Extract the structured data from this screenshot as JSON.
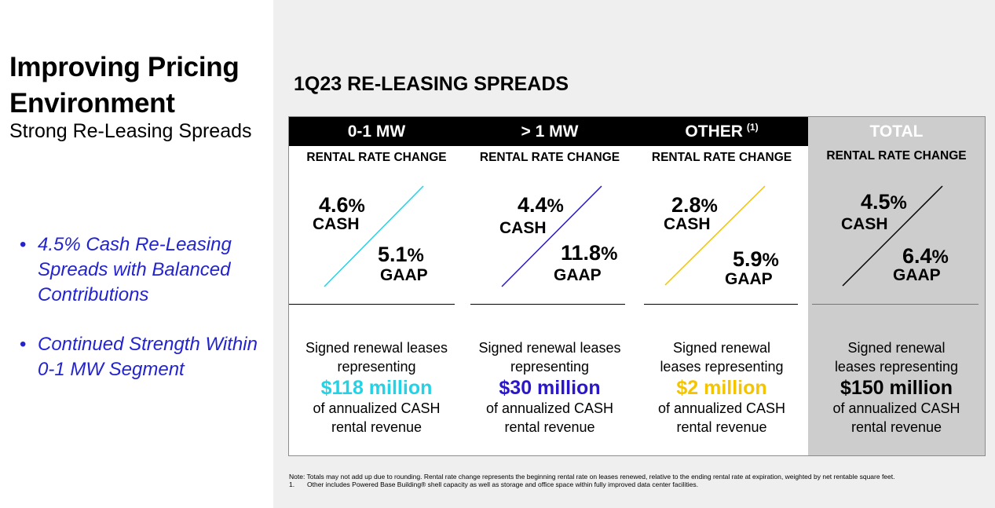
{
  "slide": {
    "title": "Improving Pricing Environment",
    "subtitle": "Strong Re-Leasing Spreads",
    "bullets": [
      "4.5% Cash Re-Leasing Spreads with Balanced Contributions",
      "Continued Strength Within 0-1 MW Segment"
    ],
    "bullet_symbol": "•",
    "section_title": "1Q23 RE-LEASING SPREADS"
  },
  "columns": [
    {
      "name": "0-1 MW",
      "footnote": "",
      "subheader": "RENTAL RATE CHANGE",
      "cash_value": "4.6",
      "gaap_value": "5.1",
      "percent_sign": "%",
      "cash_label": "CASH",
      "gaap_label": "GAAP",
      "desc_line1": "Signed renewal leases",
      "desc_line2": "representing",
      "amount": "$118 million",
      "amount_color": "#22d3e6",
      "desc_line3": "of annualized CASH",
      "desc_line4": "rental revenue",
      "line_color": "#22d3e6"
    },
    {
      "name": "> 1 MW",
      "footnote": "",
      "subheader": "RENTAL RATE CHANGE",
      "cash_value": "4.4",
      "gaap_value": "11.8",
      "percent_sign": "%",
      "cash_label": "CASH",
      "gaap_label": "GAAP",
      "desc_line1": "Signed renewal leases",
      "desc_line2": "representing",
      "amount": "$30 million",
      "amount_color": "#2a17c9",
      "desc_line3": "of annualized CASH",
      "desc_line4": "rental revenue",
      "line_color": "#2a17c9"
    },
    {
      "name": "OTHER",
      "footnote": "(1)",
      "subheader": "RENTAL RATE CHANGE",
      "cash_value": "2.8",
      "gaap_value": "5.9",
      "percent_sign": "%",
      "cash_label": "CASH",
      "gaap_label": "GAAP",
      "desc_line1": "Signed renewal",
      "desc_line2": "leases representing",
      "amount": "$2 million",
      "amount_color": "#f5c400",
      "desc_line3": "of annualized CASH",
      "desc_line4": "rental revenue",
      "line_color": "#f5c400"
    },
    {
      "name": "TOTAL",
      "footnote": "",
      "subheader": "RENTAL RATE CHANGE",
      "cash_value": "4.5",
      "gaap_value": "6.4",
      "percent_sign": "%",
      "cash_label": "CASH",
      "gaap_label": "GAAP",
      "desc_line1": "Signed renewal",
      "desc_line2": "leases representing",
      "amount": "$150 million",
      "amount_color": "#000000",
      "desc_line3": "of annualized CASH",
      "desc_line4": "rental revenue",
      "line_color": "#000000"
    }
  ],
  "notes": {
    "main": "Note:  Totals may not add up due to rounding. Rental rate change represents the beginning rental rate on leases renewed, relative to the ending rental rate at expiration, weighted by net rentable square feet.",
    "footnote_number": "1.",
    "footnote_text": "Other includes Powered Base Building® shell capacity as well as storage and office space within fully improved data center facilities."
  }
}
